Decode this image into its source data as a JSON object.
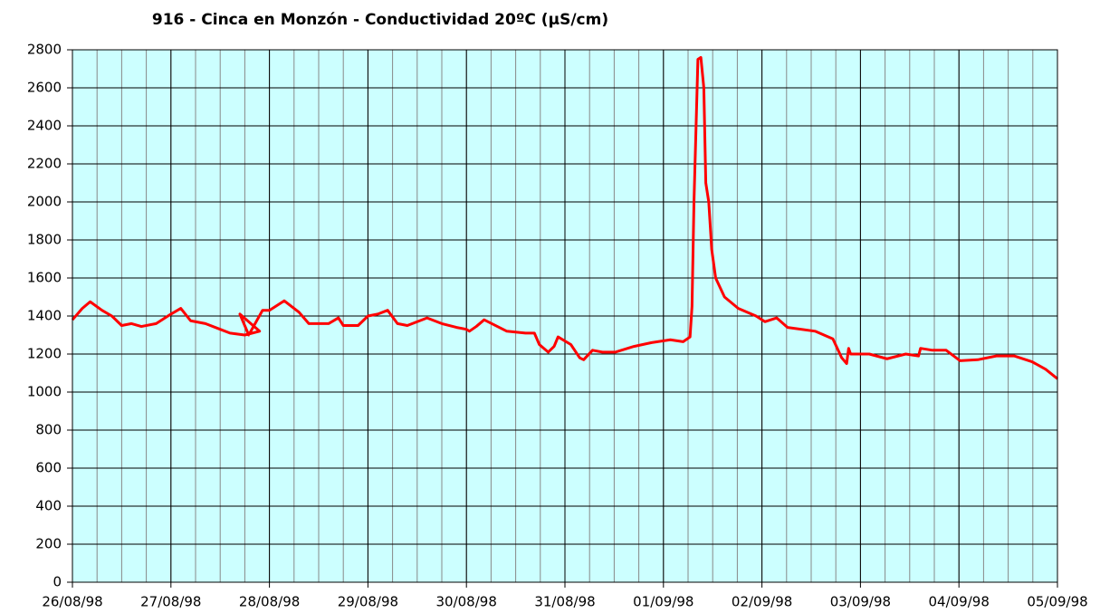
{
  "chart_data": {
    "type": "line",
    "title": "916 - Cinca en Monzón - Conductividad 20ºC (µS/cm)",
    "x": [
      0,
      0.1,
      0.18,
      0.3,
      0.4,
      0.5,
      0.6,
      0.7,
      0.85,
      1.0,
      1.1,
      1.2,
      1.35,
      1.5,
      1.6,
      1.75,
      1.9,
      1.7,
      1.79,
      1.93,
      2.0,
      2.15,
      2.3,
      2.4,
      2.6,
      2.7,
      2.75,
      2.9,
      3.0,
      3.1,
      3.2,
      3.3,
      3.4,
      3.6,
      3.75,
      3.9,
      4.0,
      4.03,
      4.1,
      4.18,
      4.41,
      4.6,
      4.69,
      4.74,
      4.83,
      4.89,
      4.93,
      5.06,
      5.15,
      5.19,
      5.28,
      5.38,
      5.51,
      5.7,
      5.88,
      6.07,
      6.2,
      6.27,
      6.29,
      6.31,
      6.35,
      6.38,
      6.41,
      6.43,
      6.46,
      6.49,
      6.53,
      6.62,
      6.76,
      6.94,
      7.03,
      7.15,
      7.26,
      7.54,
      7.72,
      7.81,
      7.86,
      7.88,
      7.9,
      8.09,
      8.27,
      8.46,
      8.59,
      8.61,
      8.73,
      8.87,
      9.01,
      9.19,
      9.38,
      9.56,
      9.74,
      9.88,
      10
    ],
    "series": [
      {
        "name": "Conductividad",
        "color": "#ff0000",
        "values": [
          1380,
          1440,
          1475,
          1430,
          1400,
          1350,
          1360,
          1345,
          1360,
          1410,
          1440,
          1375,
          1360,
          1330,
          1310,
          1300,
          1320,
          1410,
          1300,
          1430,
          1430,
          1480,
          1420,
          1360,
          1360,
          1390,
          1350,
          1350,
          1400,
          1410,
          1430,
          1360,
          1350,
          1390,
          1360,
          1340,
          1330,
          1320,
          1345,
          1380,
          1320,
          1310,
          1310,
          1250,
          1210,
          1240,
          1290,
          1250,
          1180,
          1170,
          1220,
          1210,
          1210,
          1240,
          1260,
          1275,
          1265,
          1290,
          1450,
          2000,
          2750,
          2760,
          2600,
          2100,
          2000,
          1750,
          1600,
          1500,
          1440,
          1400,
          1370,
          1390,
          1340,
          1320,
          1280,
          1180,
          1150,
          1230,
          1200,
          1200,
          1175,
          1200,
          1190,
          1230,
          1220,
          1220,
          1165,
          1170,
          1190,
          1190,
          1160,
          1120,
          1070
        ]
      }
    ],
    "xlim": [
      0,
      10
    ],
    "xticks": [
      {
        "value": 0,
        "label": "26/08/98"
      },
      {
        "value": 1,
        "label": "27/08/98"
      },
      {
        "value": 2,
        "label": "28/08/98"
      },
      {
        "value": 3,
        "label": "29/08/98"
      },
      {
        "value": 4,
        "label": "30/08/98"
      },
      {
        "value": 5,
        "label": "31/08/98"
      },
      {
        "value": 6,
        "label": "01/09/98"
      },
      {
        "value": 7,
        "label": "02/09/98"
      },
      {
        "value": 8,
        "label": "03/09/98"
      },
      {
        "value": 9,
        "label": "04/09/98"
      },
      {
        "value": 10,
        "label": "05/09/98"
      }
    ],
    "minor_grid": 0.25,
    "ylim": [
      0,
      2800
    ],
    "yticks": [
      0,
      200,
      400,
      600,
      800,
      1000,
      1200,
      1400,
      1600,
      1800,
      2000,
      2200,
      2400,
      2600,
      2800
    ],
    "grid": true,
    "background": "#ccffff"
  }
}
